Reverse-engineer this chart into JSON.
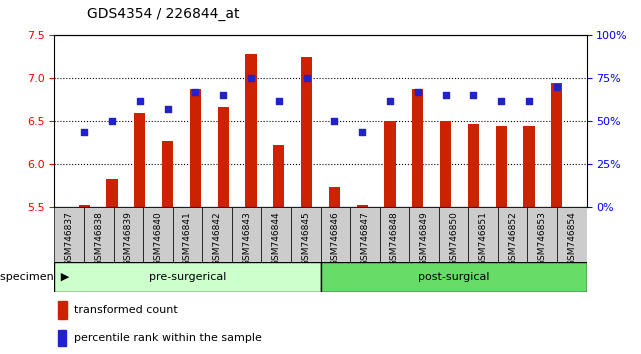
{
  "title": "GDS4354 / 226844_at",
  "samples": [
    "GSM746837",
    "GSM746838",
    "GSM746839",
    "GSM746840",
    "GSM746841",
    "GSM746842",
    "GSM746843",
    "GSM746844",
    "GSM746845",
    "GSM746846",
    "GSM746847",
    "GSM746848",
    "GSM746849",
    "GSM746850",
    "GSM746851",
    "GSM746852",
    "GSM746853",
    "GSM746854"
  ],
  "bar_values": [
    5.52,
    5.83,
    6.6,
    6.27,
    6.88,
    6.67,
    7.28,
    6.22,
    7.25,
    5.73,
    5.52,
    6.5,
    6.88,
    6.5,
    6.47,
    6.45,
    6.45,
    6.95
  ],
  "percentile_values": [
    44,
    50,
    62,
    57,
    67,
    65,
    75,
    62,
    75,
    50,
    44,
    62,
    67,
    65,
    65,
    62,
    62,
    70
  ],
  "ylim_left": [
    5.5,
    7.5
  ],
  "ylim_right": [
    0,
    100
  ],
  "yticks_left": [
    5.5,
    6.0,
    6.5,
    7.0,
    7.5
  ],
  "yticks_right": [
    0,
    25,
    50,
    75,
    100
  ],
  "ytick_labels_right": [
    "0%",
    "25%",
    "50%",
    "75%",
    "100%"
  ],
  "bar_color": "#cc2200",
  "dot_color": "#2222cc",
  "grid_color": "#000000",
  "pre_surgical_count": 9,
  "post_surgical_count": 9,
  "pre_label": "pre-surgerical",
  "post_label": "post-surgical",
  "specimen_label": "specimen",
  "legend_bar_label": "transformed count",
  "legend_dot_label": "percentile rank within the sample",
  "bg_color_pre": "#ccffcc",
  "bg_color_post": "#66dd66",
  "tick_area_color": "#cccccc",
  "fig_width": 6.41,
  "fig_height": 3.54
}
